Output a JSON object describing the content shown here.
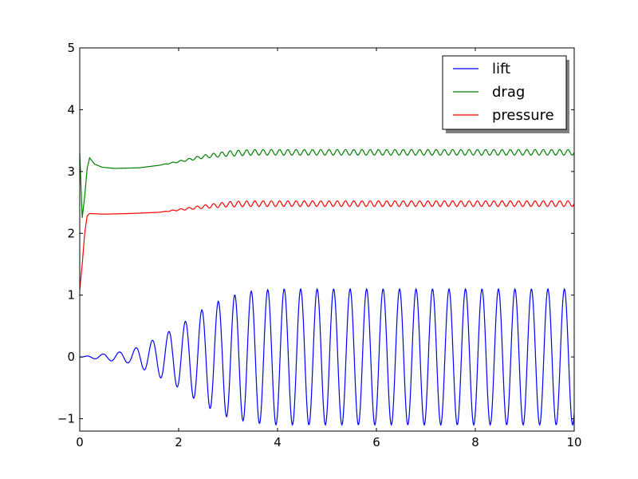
{
  "chart_data": {
    "type": "line",
    "title": "",
    "xlabel": "",
    "ylabel": "",
    "xlim": [
      0,
      10
    ],
    "ylim": [
      -1.2,
      5
    ],
    "x_ticks": [
      0,
      2,
      4,
      6,
      8,
      10
    ],
    "x_tick_labels": [
      "0",
      "2",
      "4",
      "6",
      "8",
      "10"
    ],
    "y_ticks": [
      -1,
      0,
      1,
      2,
      3,
      4,
      5
    ],
    "y_tick_labels": [
      "−1",
      "0",
      "1",
      "2",
      "3",
      "4",
      "5"
    ],
    "grid": false,
    "legend_position": "top-right",
    "sample_step": 0.01,
    "series": [
      {
        "name": "lift",
        "color": "#0000ff",
        "oscillation_frequency": 3.0,
        "amplitude_key_points": [
          [
            0,
            0.0
          ],
          [
            0.5,
            0.05
          ],
          [
            1.0,
            0.1
          ],
          [
            1.5,
            0.28
          ],
          [
            2.0,
            0.5
          ],
          [
            2.5,
            0.78
          ],
          [
            3.0,
            0.98
          ],
          [
            3.5,
            1.07
          ],
          [
            4.0,
            1.1
          ],
          [
            10.0,
            1.1
          ]
        ],
        "offset": 0.0
      },
      {
        "name": "drag",
        "color": "#008000",
        "transient_points": [
          [
            0,
            3.3
          ],
          [
            0.05,
            2.25
          ],
          [
            0.1,
            2.6
          ],
          [
            0.15,
            3.05
          ],
          [
            0.2,
            3.22
          ],
          [
            0.3,
            3.12
          ],
          [
            0.45,
            3.07
          ],
          [
            0.7,
            3.05
          ],
          [
            1.2,
            3.06
          ],
          [
            1.6,
            3.1
          ],
          [
            2.0,
            3.16
          ],
          [
            2.5,
            3.24
          ],
          [
            3.0,
            3.29
          ],
          [
            3.5,
            3.31
          ],
          [
            10.0,
            3.31
          ]
        ],
        "oscillation_frequency": 6.0,
        "oscillation_amplitude": 0.045,
        "oscillation_start": 1.6
      },
      {
        "name": "pressure",
        "color": "#ff0000",
        "transient_points": [
          [
            0,
            1.08
          ],
          [
            0.05,
            1.5
          ],
          [
            0.1,
            2.0
          ],
          [
            0.15,
            2.28
          ],
          [
            0.2,
            2.32
          ],
          [
            0.5,
            2.31
          ],
          [
            1.0,
            2.32
          ],
          [
            1.6,
            2.34
          ],
          [
            2.0,
            2.38
          ],
          [
            2.5,
            2.43
          ],
          [
            3.0,
            2.47
          ],
          [
            3.5,
            2.48
          ],
          [
            10.0,
            2.48
          ]
        ],
        "oscillation_frequency": 6.0,
        "oscillation_amplitude": 0.045,
        "oscillation_start": 1.6
      }
    ]
  }
}
